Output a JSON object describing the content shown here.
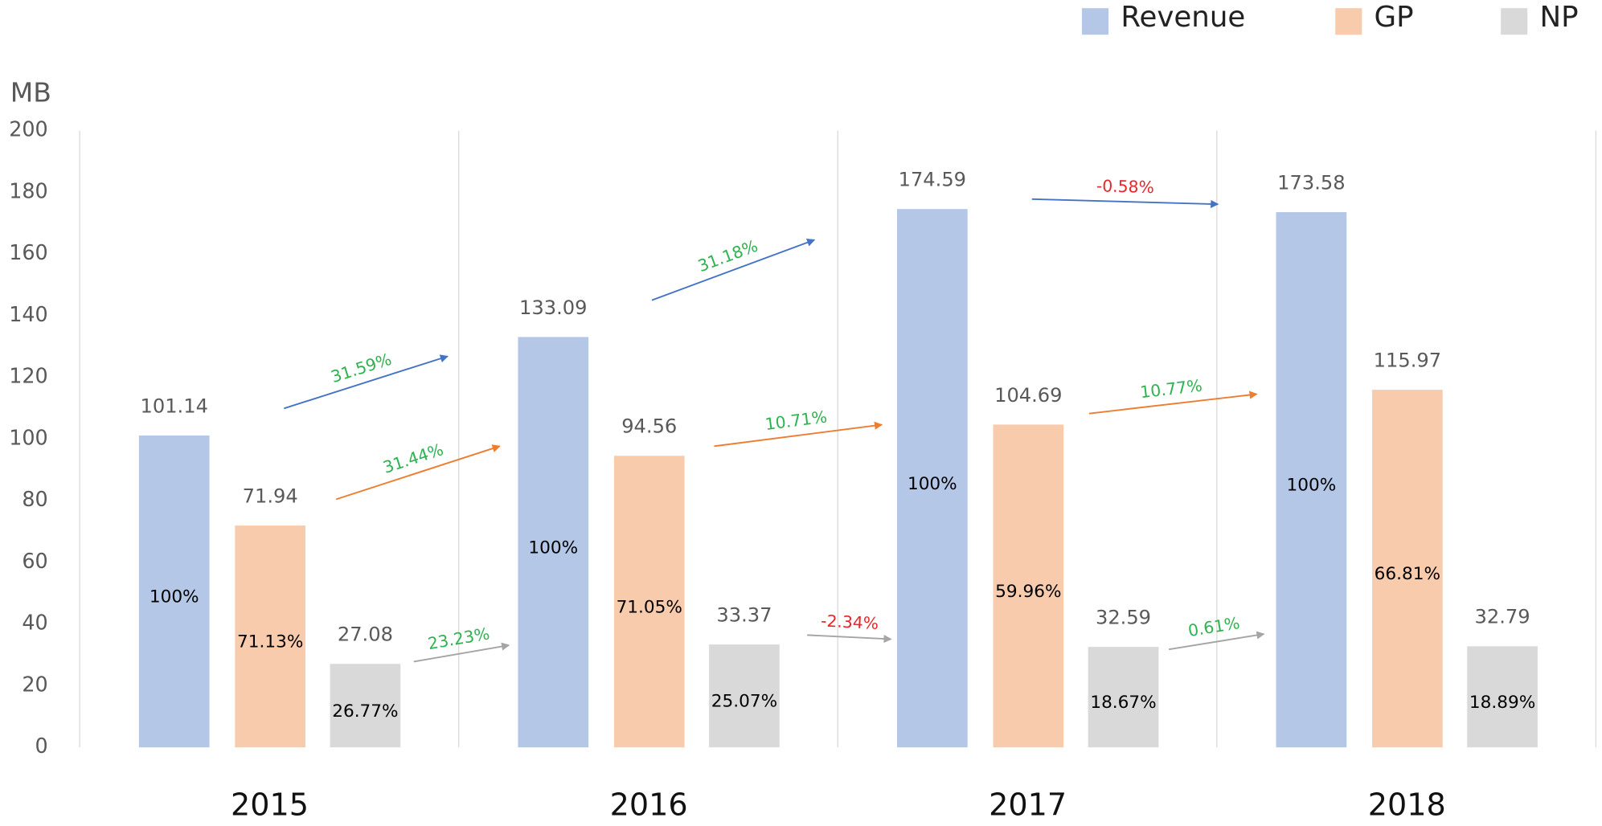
{
  "chart_data": {
    "type": "bar",
    "y_axis_label": "MB",
    "categories": [
      "2015",
      "2016",
      "2017",
      "2018"
    ],
    "ylim": [
      0,
      200
    ],
    "yticks": [
      0,
      20,
      40,
      60,
      80,
      100,
      120,
      140,
      160,
      180,
      200
    ],
    "legend": "top-right",
    "series": [
      {
        "name": "Revenue",
        "color": "#b4c7e7",
        "arrow_color": "#4472c4",
        "values": [
          101.14,
          133.09,
          174.59,
          173.58
        ],
        "inner_labels": [
          "100%",
          "100%",
          "100%",
          "100%"
        ],
        "growth_labels": [
          {
            "label": "31.59%",
            "color": "#2db350"
          },
          {
            "label": "31.18%",
            "color": "#2db350"
          },
          {
            "label": "-0.58%",
            "color": "#e8262b"
          }
        ]
      },
      {
        "name": "GP",
        "color": "#f8cbad",
        "arrow_color": "#ed7d31",
        "values": [
          71.94,
          94.56,
          104.69,
          115.97
        ],
        "inner_labels": [
          "71.13%",
          "71.05%",
          "59.96%",
          "66.81%"
        ],
        "growth_labels": [
          {
            "label": "31.44%",
            "color": "#2db350"
          },
          {
            "label": "10.71%",
            "color": "#2db350"
          },
          {
            "label": "10.77%",
            "color": "#2db350"
          }
        ]
      },
      {
        "name": "NP",
        "color": "#d9d9d9",
        "arrow_color": "#a5a5a5",
        "values": [
          27.08,
          33.37,
          32.59,
          32.79
        ],
        "inner_labels": [
          "26.77%",
          "25.07%",
          "18.67%",
          "18.89%"
        ],
        "growth_labels": [
          {
            "label": "23.23%",
            "color": "#2db350"
          },
          {
            "label": "-2.34%",
            "color": "#e8262b"
          },
          {
            "label": "0.61%",
            "color": "#2db350"
          }
        ]
      }
    ]
  }
}
